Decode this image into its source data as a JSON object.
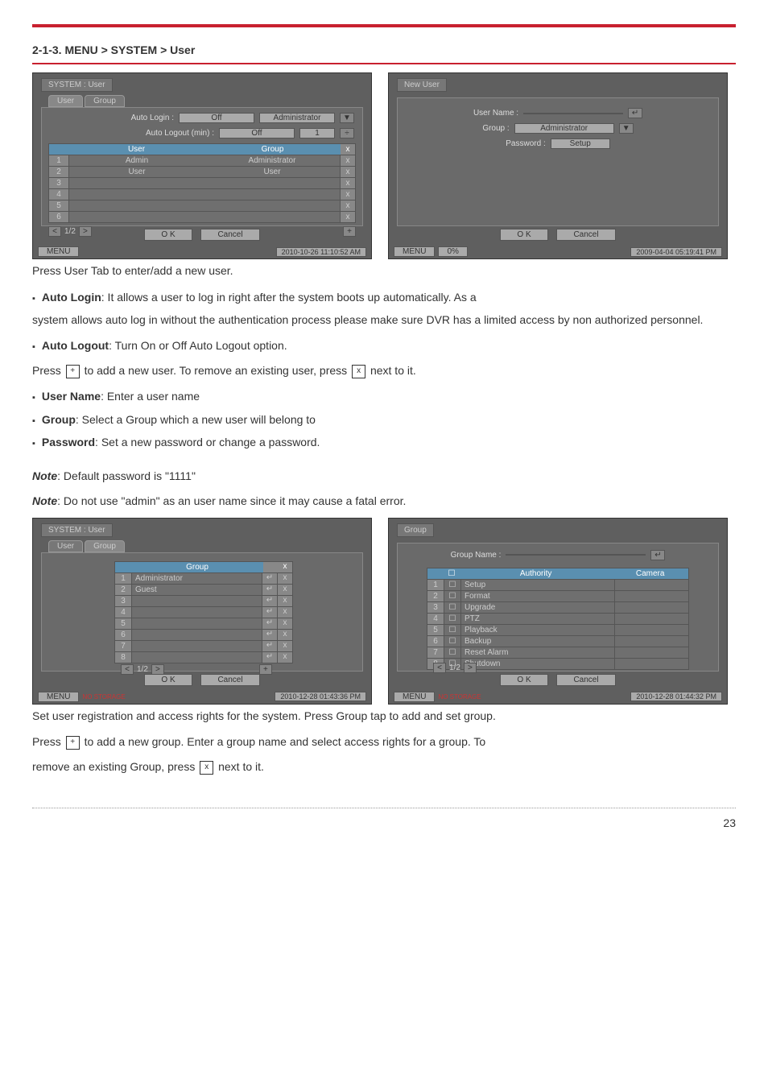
{
  "section_title": "2-1-3. MENU > SYSTEM > User",
  "red_color": "#c8202f",
  "page_num": 23,
  "captions": {
    "c1": "Press User Tab to enter/add a new user.",
    "c2": "Set user registration and access rights for the system. Press Group tap to add and set group."
  },
  "bullets": {
    "auto_login_b": "Auto Login",
    "auto_login_t": ": It allows a user to log in right after the system boots up automatically. As a",
    "auto_login_cont": "system allows auto log in without the authentication process please make sure DVR has a limited access by non authorized personnel.",
    "auto_logout_b": "Auto Logout",
    "auto_logout_t": ": Turn On or Off Auto Logout option.",
    "press_plus": "Press ",
    "press_plus_rest": " to add a new user. To remove an existing user, press ",
    "press_plus_tail": " next to it.",
    "user_name_b": "User Name",
    "user_name_t": ": Enter a user name",
    "group_b": "Group",
    "group_t": ": Select a Group which a new user will belong to",
    "password_b": "Password",
    "password_t": ": Set a new password or change a password."
  },
  "notes": {
    "n1_pre": "Note",
    "n1_rest": ": Default password is \"1111\"",
    "n2_pre": "Note",
    "n2_rest": ": Do not use \"admin\" as an user name since it may cause a fatal error."
  },
  "group_instr": {
    "l1a": "Press ",
    "l1b": " to add a new group. Enter a group name and select access rights for a group. To",
    "l2a": "remove an existing Group, press ",
    "l2b": " next to it."
  },
  "fig1": {
    "title": "SYSTEM : User",
    "tab1": "User",
    "tab2": "Group",
    "auto_login_lbl": "Auto Login :",
    "auto_login_val": "Off",
    "auto_login_dd": "Administrator",
    "auto_logout_lbl": "Auto Logout (min) :",
    "auto_logout_val": "Off",
    "auto_logout_num": "1",
    "hdr_user": "User",
    "hdr_group": "Group",
    "rows": [
      {
        "n": "1",
        "user": "Admin",
        "group": "Administrator"
      },
      {
        "n": "2",
        "user": "User",
        "group": "User"
      },
      {
        "n": "3",
        "user": "",
        "group": ""
      },
      {
        "n": "4",
        "user": "",
        "group": ""
      },
      {
        "n": "5",
        "user": "",
        "group": ""
      },
      {
        "n": "6",
        "user": "",
        "group": ""
      }
    ],
    "pager": "1/2",
    "ok": "O K",
    "cancel": "Cancel",
    "menu": "MENU",
    "time": "2010-10-26 11:10:52 AM"
  },
  "fig2": {
    "title": "New User",
    "uname_lbl": "User Name :",
    "group_lbl": "Group :",
    "group_val": "Administrator",
    "pwd_lbl": "Password :",
    "pwd_val": "Setup",
    "ok": "O K",
    "cancel": "Cancel",
    "menu": "MENU",
    "progress": "0%",
    "time": "2009-04-04 05:19:41 PM"
  },
  "fig3": {
    "title": "SYSTEM : User",
    "tab1": "User",
    "tab2": "Group",
    "hdr_group": "Group",
    "rows": [
      {
        "n": "1",
        "g": "Administrator"
      },
      {
        "n": "2",
        "g": "Guest"
      },
      {
        "n": "3",
        "g": ""
      },
      {
        "n": "4",
        "g": ""
      },
      {
        "n": "5",
        "g": ""
      },
      {
        "n": "6",
        "g": ""
      },
      {
        "n": "7",
        "g": ""
      },
      {
        "n": "8",
        "g": ""
      }
    ],
    "pager": "1/2",
    "ok": "O K",
    "cancel": "Cancel",
    "menu": "MENU",
    "no_storage": "NO STORAGE",
    "time": "2010-12-28 01:43:36 PM"
  },
  "fig4": {
    "title": "Group",
    "gname_lbl": "Group Name :",
    "hdr_auth": "Authority",
    "hdr_cam": "Camera",
    "rows": [
      {
        "n": "1",
        "a": "Setup"
      },
      {
        "n": "2",
        "a": "Format"
      },
      {
        "n": "3",
        "a": "Upgrade"
      },
      {
        "n": "4",
        "a": "PTZ"
      },
      {
        "n": "5",
        "a": "Playback"
      },
      {
        "n": "6",
        "a": "Backup"
      },
      {
        "n": "7",
        "a": "Reset Alarm"
      },
      {
        "n": "8",
        "a": "Shutdown"
      }
    ],
    "pager": "1/2",
    "ok": "O K",
    "cancel": "Cancel",
    "menu": "MENU",
    "no_storage": "NO STORAGE",
    "time": "2010-12-28 01:44:32 PM"
  },
  "icons": {
    "plus": "+",
    "x": "x",
    "lt": "<",
    "gt": ">",
    "dd": "▼",
    "spin": "÷",
    "enter": "↵"
  }
}
